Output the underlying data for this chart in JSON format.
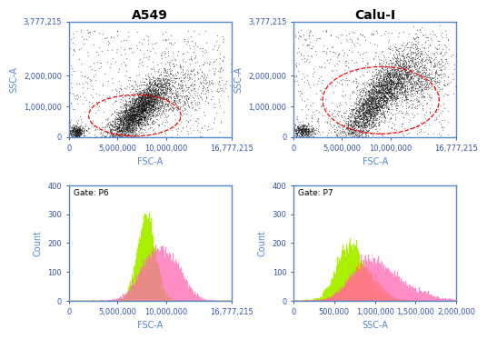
{
  "titles": [
    "A549",
    "Calu-I"
  ],
  "gate_labels": [
    "Gate: P6",
    "Gate: P7"
  ],
  "scatter_xlim": [
    0,
    16777215
  ],
  "scatter_ylim": [
    0,
    3777215
  ],
  "scatter_xticks": [
    0,
    5000000,
    10000000,
    16777215
  ],
  "scatter_yticks": [
    0,
    1000000,
    2000000,
    3777215
  ],
  "scatter_xlabel": "FSC-A",
  "scatter_ylabel": "SSC-A",
  "hist_xlim_fsc": [
    0,
    16777215
  ],
  "hist_xlim_ssc": [
    0,
    2000000
  ],
  "hist_xticks_fsc": [
    0,
    5000000,
    10000000,
    16777215
  ],
  "hist_xticks_ssc": [
    0,
    500000,
    1000000,
    1500000,
    2000000
  ],
  "hist_xlabel_fsc": "FSC-A",
  "hist_xlabel_ssc": "SSC-A",
  "hist_ylabel": "Count",
  "hist_ylim": [
    0,
    400
  ],
  "hist_yticks": [
    0,
    100,
    200,
    300,
    400
  ],
  "gate_color": "#FF0000",
  "scatter_dot_color": "#111111",
  "hist_color_green": "#AAEE00",
  "hist_color_pink": "#FF69B4",
  "hist_color_orange": "#FFA500",
  "scatter_bg": "#FFFFFF",
  "hist_bg": "#FFFFFF",
  "border_color": "#5588CC",
  "axis_label_color": "#3355AA",
  "tick_color": "#3355AA",
  "title_fontsize": 10,
  "axis_fontsize": 7,
  "tick_fontsize": 6,
  "n_scatter": 5000,
  "n_hist_bins": 200
}
